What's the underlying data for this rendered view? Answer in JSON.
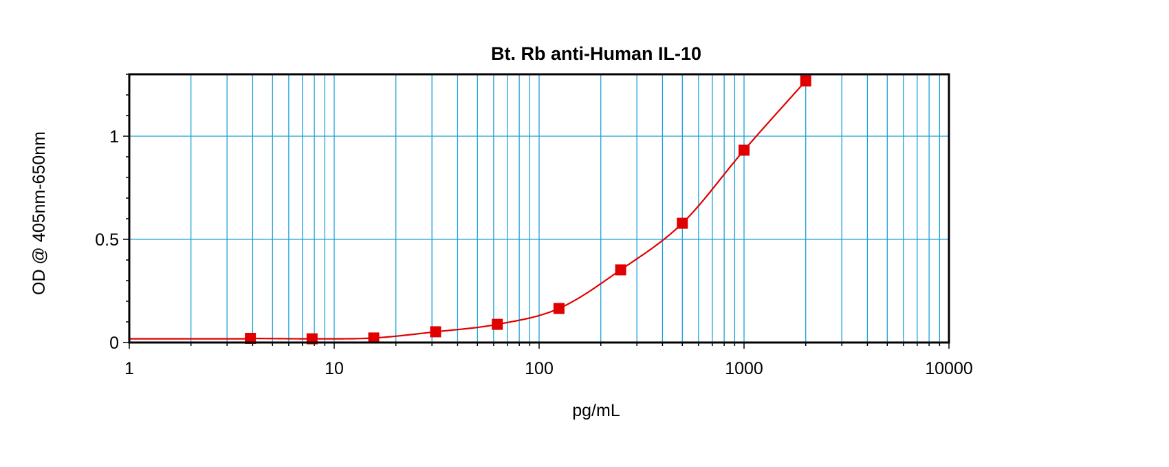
{
  "chart_data": {
    "type": "scatter",
    "title": "Bt. Rb anti-Human IL-10",
    "xlabel": "pg/mL",
    "ylabel": "OD @ 405nm-650nm",
    "x_scale": "log",
    "xlim": [
      1,
      10000
    ],
    "ylim": [
      0,
      1.3
    ],
    "x_ticks": [
      1,
      10,
      100,
      1000,
      10000
    ],
    "x_tick_labels": [
      "1",
      "10",
      "100",
      "1000",
      "10000"
    ],
    "y_ticks": [
      0,
      0.5,
      1
    ],
    "y_tick_labels": [
      "0",
      "0.5",
      "1"
    ],
    "grid": true,
    "series": [
      {
        "x": [
          3.9,
          7.8,
          15.6,
          31.25,
          62.5,
          125,
          250,
          500,
          1000,
          2000
        ],
        "y": [
          0.02,
          0.018,
          0.022,
          0.052,
          0.088,
          0.165,
          0.352,
          0.578,
          0.932,
          1.268
        ],
        "marker": "square",
        "fit_line": true
      }
    ],
    "colors": {
      "series": "#e00000",
      "grid": "#1aa0d8",
      "axes": "#000000"
    }
  }
}
